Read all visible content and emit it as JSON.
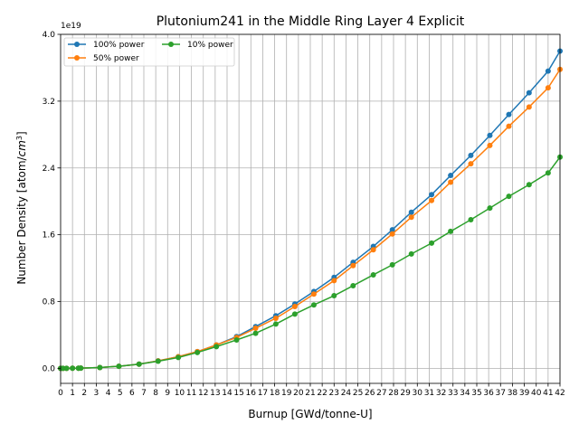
{
  "chart_data": {
    "type": "line",
    "title": "Plutonium241 in the Middle Ring Layer 4 Explicit",
    "xlabel": "Burnup [GWd/tonne-U]",
    "ylabel_prefix": "Number Density [atom/",
    "ylabel_unit": "cm",
    "ylabel_exp": "3",
    "ylabel_suffix": "]",
    "y_offset_label": "1e19",
    "xlim": [
      0,
      42
    ],
    "ylim": [
      -0.18,
      4.0
    ],
    "x_ticks": [
      0,
      1,
      2,
      3,
      4,
      5,
      6,
      7,
      8,
      9,
      10,
      11,
      12,
      13,
      14,
      15,
      16,
      17,
      18,
      19,
      20,
      21,
      22,
      23,
      24,
      25,
      26,
      27,
      28,
      29,
      30,
      31,
      32,
      33,
      34,
      35,
      36,
      37,
      38,
      39,
      40,
      41,
      42
    ],
    "x_tick_labels": [
      "0",
      "1",
      "2",
      "3",
      "4",
      "5",
      "6",
      "7",
      "8",
      "9",
      "10",
      "11",
      "12",
      "13",
      "14",
      "15",
      "16",
      "17",
      "18",
      "19",
      "20",
      "21",
      "22",
      "23",
      "24",
      "25",
      "26",
      "27",
      "28",
      "29",
      "30",
      "31",
      "32",
      "33",
      "34",
      "35",
      "36",
      "37",
      "38",
      "39",
      "40",
      "41",
      "42"
    ],
    "y_ticks": [
      0.0,
      0.8,
      1.6,
      2.4,
      3.2,
      4.0
    ],
    "y_tick_labels": [
      "0.0",
      "0.8",
      "1.6",
      "2.4",
      "3.2",
      "4.0"
    ],
    "grid": true,
    "legend_position": "top-left",
    "series": [
      {
        "name": "100% power",
        "color": "#1f77b4",
        "x": [
          0,
          0.2,
          0.5,
          1.0,
          1.5,
          1.7,
          3.3,
          4.9,
          6.6,
          8.2,
          9.9,
          11.5,
          13.1,
          14.8,
          16.4,
          18.1,
          19.7,
          21.3,
          23.0,
          24.6,
          26.3,
          27.9,
          29.5,
          31.2,
          32.8,
          34.5,
          36.1,
          37.7,
          39.4,
          41.0,
          42.0
        ],
        "y": [
          0,
          0.0001,
          0.0005,
          0.001,
          0.002,
          0.003,
          0.01,
          0.025,
          0.05,
          0.09,
          0.14,
          0.2,
          0.28,
          0.38,
          0.5,
          0.63,
          0.77,
          0.92,
          1.09,
          1.27,
          1.46,
          1.66,
          1.87,
          2.08,
          2.31,
          2.55,
          2.79,
          3.04,
          3.3,
          3.56,
          3.8
        ]
      },
      {
        "name": "50% power",
        "color": "#ff7f0e",
        "x": [
          0,
          0.2,
          0.5,
          1.0,
          1.5,
          1.7,
          3.3,
          4.9,
          6.6,
          8.2,
          9.9,
          11.5,
          13.1,
          14.8,
          16.4,
          18.1,
          19.7,
          21.3,
          23.0,
          24.6,
          26.3,
          27.9,
          29.5,
          31.2,
          32.8,
          34.5,
          36.1,
          37.7,
          39.4,
          41.0,
          42.0
        ],
        "y": [
          0,
          0.0001,
          0.0005,
          0.001,
          0.002,
          0.003,
          0.01,
          0.025,
          0.05,
          0.09,
          0.14,
          0.2,
          0.28,
          0.37,
          0.48,
          0.6,
          0.74,
          0.89,
          1.05,
          1.23,
          1.42,
          1.61,
          1.81,
          2.01,
          2.23,
          2.45,
          2.67,
          2.9,
          3.13,
          3.36,
          3.58
        ]
      },
      {
        "name": "10% power",
        "color": "#2ca02c",
        "x": [
          0,
          0.2,
          0.5,
          1.0,
          1.5,
          1.7,
          3.3,
          4.9,
          6.6,
          8.2,
          9.9,
          11.5,
          13.1,
          14.8,
          16.4,
          18.1,
          19.7,
          21.3,
          23.0,
          24.6,
          26.3,
          27.9,
          29.5,
          31.2,
          32.8,
          34.5,
          36.1,
          37.7,
          39.4,
          41.0,
          42.0
        ],
        "y": [
          0,
          0.0001,
          0.0005,
          0.001,
          0.002,
          0.003,
          0.01,
          0.025,
          0.05,
          0.085,
          0.13,
          0.19,
          0.26,
          0.34,
          0.42,
          0.53,
          0.65,
          0.76,
          0.87,
          0.99,
          1.12,
          1.24,
          1.37,
          1.5,
          1.64,
          1.78,
          1.92,
          2.06,
          2.2,
          2.34,
          2.53
        ]
      }
    ]
  }
}
